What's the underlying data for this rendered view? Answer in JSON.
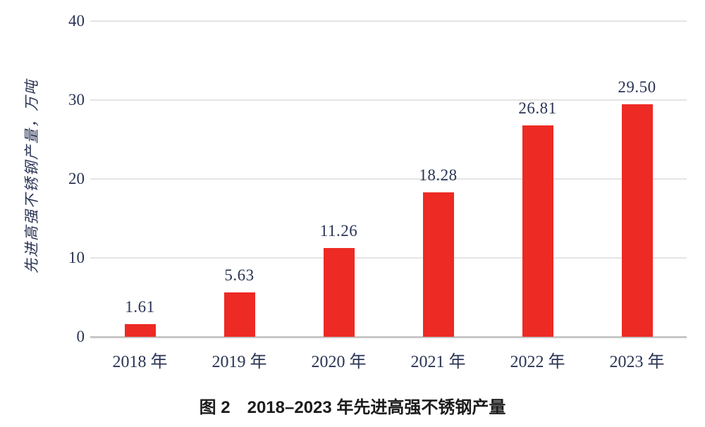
{
  "figure": {
    "caption": "图 2　2018–2023 年先进高强不锈钢产量"
  },
  "chart_data": {
    "type": "bar",
    "categories": [
      "2018 年",
      "2019 年",
      "2020 年",
      "2021 年",
      "2022 年",
      "2023 年"
    ],
    "values": [
      1.61,
      5.63,
      11.26,
      18.28,
      26.81,
      29.5
    ],
    "value_labels": [
      "1.61",
      "5.63",
      "11.26",
      "18.28",
      "26.81",
      "29.50"
    ],
    "title": "图 2　2018–2023 年先进高强不锈钢产量",
    "xlabel": "",
    "ylabel": "先进高强不锈钢产量，万吨",
    "ylim": [
      0,
      40
    ],
    "yticks": [
      0,
      10,
      20,
      30,
      40
    ],
    "grid": "horizontal",
    "legend": "none",
    "colors": {
      "bar": "#ed2a24",
      "text": "#2a3454",
      "gridline": "#e4e4e4",
      "axis_line": "#c7c7c7",
      "caption_text": "#1c1c1c",
      "background": "#ffffff"
    }
  }
}
